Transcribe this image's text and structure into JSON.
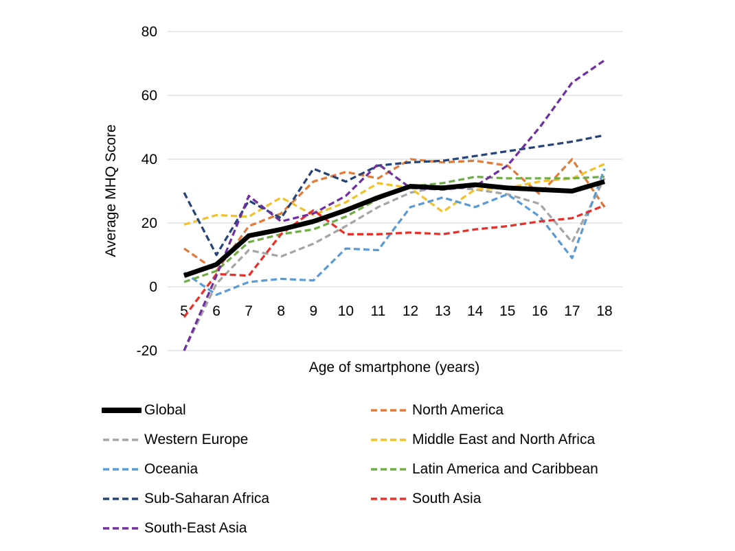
{
  "chart_data": {
    "type": "line",
    "title": "",
    "xlabel": "Age of smartphone (years)",
    "ylabel": "Average MHQ Score",
    "x": [
      5,
      6,
      7,
      8,
      9,
      10,
      11,
      12,
      13,
      14,
      15,
      16,
      17,
      18
    ],
    "ylim": [
      -20,
      80
    ],
    "yticks": [
      -20,
      0,
      20,
      40,
      60,
      80
    ],
    "grid": "horizontal",
    "legend_position": "bottom",
    "series": [
      {
        "name": "Global",
        "color": "#000000",
        "style": "solid",
        "values": [
          3.5,
          7,
          16,
          18,
          20.5,
          24,
          28,
          31.5,
          31,
          32,
          31,
          30.5,
          30,
          33
        ]
      },
      {
        "name": "North America",
        "color": "#E07B39",
        "style": "dashed",
        "values": [
          12,
          5,
          19,
          23,
          33,
          36,
          34,
          40,
          39,
          39.5,
          38,
          29,
          40,
          25
        ]
      },
      {
        "name": "Western Europe",
        "color": "#A5A5A5",
        "style": "dashed",
        "values": [
          -20,
          1,
          11.5,
          9.5,
          13.5,
          19,
          25,
          29.5,
          31.5,
          30.5,
          29,
          26,
          14,
          34
        ]
      },
      {
        "name": "Middle East and North Africa",
        "color": "#F2C12E",
        "style": "dashed",
        "values": [
          19.5,
          22.5,
          22,
          28,
          22.5,
          26.5,
          32.5,
          31,
          23.5,
          30.5,
          31,
          33,
          34,
          38.5
        ]
      },
      {
        "name": "Oceania",
        "color": "#5B9BD5",
        "style": "dashed",
        "values": [
          4.5,
          -2.5,
          1.5,
          2.5,
          2,
          12,
          11.5,
          25,
          28,
          25,
          29,
          22,
          9,
          37
        ]
      },
      {
        "name": "Latin America and Caribbean",
        "color": "#70AD47",
        "style": "dashed",
        "values": [
          1.5,
          5,
          14,
          16.5,
          18,
          22,
          27.5,
          31.5,
          32.5,
          34.5,
          34,
          34,
          34,
          34.5
        ]
      },
      {
        "name": "Sub-Saharan Africa",
        "color": "#264478",
        "style": "dashed",
        "values": [
          29.5,
          10,
          27,
          21.5,
          37,
          33,
          38,
          39,
          39.5,
          41,
          42.5,
          44,
          45.5,
          47.5
        ]
      },
      {
        "name": "South Asia",
        "color": "#E8302A",
        "style": "dashed",
        "values": [
          -9.5,
          4,
          3.5,
          16.5,
          24,
          16.5,
          16.5,
          17,
          16.5,
          18,
          19,
          20.5,
          21.5,
          25.5
        ]
      },
      {
        "name": "South-East Asia",
        "color": "#7030A0",
        "style": "dashed",
        "values": [
          -20,
          3.5,
          28.5,
          20.5,
          23,
          28.5,
          38.5,
          31,
          30.5,
          31.5,
          38,
          50,
          64,
          71
        ]
      }
    ]
  }
}
